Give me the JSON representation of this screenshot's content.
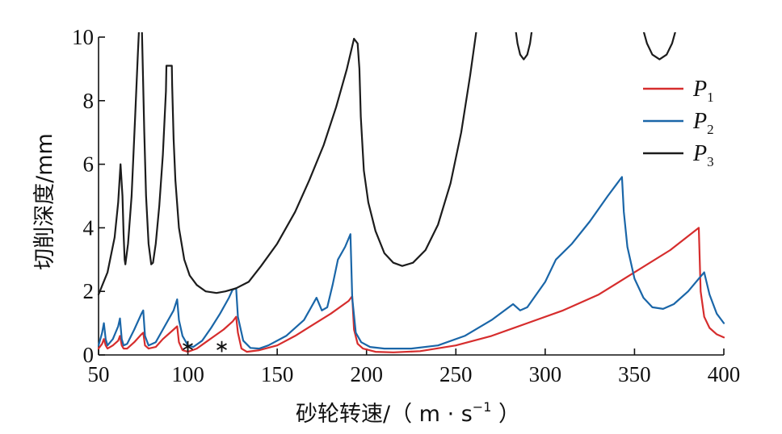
{
  "chart_data": {
    "type": "line",
    "title": "",
    "xlabel": "砂轮转速/（ m · s⁻¹ ）",
    "xlabel_parts": {
      "main": "砂轮转速/（ m · s",
      "sup": "−1",
      "tail": " ）"
    },
    "ylabel": "切削深度/mm",
    "xlim": [
      50,
      400
    ],
    "ylim": [
      0,
      10
    ],
    "xticks": [
      50,
      100,
      150,
      200,
      250,
      300,
      350,
      400
    ],
    "yticks": [
      0,
      2,
      4,
      6,
      8,
      10
    ],
    "grid": false,
    "legend_position": "top-right",
    "series": [
      {
        "name": "P1",
        "name_main": "P",
        "name_sub": "1",
        "color": "#d62d2d",
        "points": [
          [
            50,
            0.2
          ],
          [
            52,
            0.35
          ],
          [
            53,
            0.5
          ],
          [
            54,
            0.3
          ],
          [
            55,
            0.2
          ],
          [
            58,
            0.3
          ],
          [
            61,
            0.45
          ],
          [
            62,
            0.6
          ],
          [
            63,
            0.3
          ],
          [
            64,
            0.2
          ],
          [
            66,
            0.2
          ],
          [
            70,
            0.4
          ],
          [
            74,
            0.65
          ],
          [
            75,
            0.7
          ],
          [
            76,
            0.3
          ],
          [
            78,
            0.2
          ],
          [
            82,
            0.25
          ],
          [
            86,
            0.5
          ],
          [
            92,
            0.8
          ],
          [
            94,
            0.9
          ],
          [
            95,
            0.4
          ],
          [
            97,
            0.15
          ],
          [
            100,
            0.1
          ],
          [
            105,
            0.2
          ],
          [
            110,
            0.4
          ],
          [
            115,
            0.6
          ],
          [
            120,
            0.8
          ],
          [
            125,
            1.05
          ],
          [
            127,
            1.2
          ],
          [
            128,
            0.7
          ],
          [
            130,
            0.2
          ],
          [
            133,
            0.1
          ],
          [
            140,
            0.15
          ],
          [
            150,
            0.3
          ],
          [
            160,
            0.6
          ],
          [
            170,
            0.95
          ],
          [
            180,
            1.3
          ],
          [
            190,
            1.7
          ],
          [
            192,
            1.85
          ],
          [
            193,
            0.8
          ],
          [
            195,
            0.35
          ],
          [
            198,
            0.2
          ],
          [
            205,
            0.1
          ],
          [
            215,
            0.08
          ],
          [
            230,
            0.12
          ],
          [
            250,
            0.3
          ],
          [
            270,
            0.6
          ],
          [
            290,
            1.0
          ],
          [
            310,
            1.4
          ],
          [
            330,
            1.9
          ],
          [
            350,
            2.6
          ],
          [
            370,
            3.3
          ],
          [
            386,
            4.0
          ],
          [
            387,
            2.0
          ],
          [
            389,
            1.2
          ],
          [
            392,
            0.85
          ],
          [
            396,
            0.65
          ],
          [
            400,
            0.55
          ]
        ]
      },
      {
        "name": "P2",
        "name_main": "P",
        "name_sub": "2",
        "color": "#1a66a8",
        "points": [
          [
            50,
            0.3
          ],
          [
            52,
            0.7
          ],
          [
            53,
            1.0
          ],
          [
            54,
            0.5
          ],
          [
            55,
            0.3
          ],
          [
            58,
            0.5
          ],
          [
            61,
            0.9
          ],
          [
            62,
            1.15
          ],
          [
            63,
            0.5
          ],
          [
            64,
            0.3
          ],
          [
            66,
            0.35
          ],
          [
            70,
            0.8
          ],
          [
            74,
            1.3
          ],
          [
            75,
            1.4
          ],
          [
            76,
            0.6
          ],
          [
            78,
            0.3
          ],
          [
            82,
            0.4
          ],
          [
            86,
            0.8
          ],
          [
            92,
            1.4
          ],
          [
            94,
            1.75
          ],
          [
            95,
            1.1
          ],
          [
            97,
            0.6
          ],
          [
            100,
            0.3
          ],
          [
            103,
            0.25
          ],
          [
            108,
            0.45
          ],
          [
            113,
            0.85
          ],
          [
            118,
            1.3
          ],
          [
            123,
            1.8
          ],
          [
            125,
            2.05
          ],
          [
            127,
            2.1
          ],
          [
            128,
            1.2
          ],
          [
            131,
            0.45
          ],
          [
            135,
            0.22
          ],
          [
            140,
            0.2
          ],
          [
            145,
            0.3
          ],
          [
            155,
            0.6
          ],
          [
            165,
            1.1
          ],
          [
            172,
            1.8
          ],
          [
            175,
            1.4
          ],
          [
            178,
            1.5
          ],
          [
            181,
            2.2
          ],
          [
            184,
            3.0
          ],
          [
            188,
            3.4
          ],
          [
            191,
            3.8
          ],
          [
            192,
            1.8
          ],
          [
            194,
            0.7
          ],
          [
            197,
            0.4
          ],
          [
            202,
            0.25
          ],
          [
            210,
            0.2
          ],
          [
            225,
            0.2
          ],
          [
            240,
            0.3
          ],
          [
            255,
            0.6
          ],
          [
            270,
            1.1
          ],
          [
            282,
            1.6
          ],
          [
            286,
            1.4
          ],
          [
            290,
            1.5
          ],
          [
            300,
            2.3
          ],
          [
            306,
            3.0
          ],
          [
            315,
            3.5
          ],
          [
            325,
            4.2
          ],
          [
            335,
            5.0
          ],
          [
            343,
            5.6
          ],
          [
            344,
            4.5
          ],
          [
            346,
            3.4
          ],
          [
            350,
            2.4
          ],
          [
            355,
            1.8
          ],
          [
            360,
            1.5
          ],
          [
            366,
            1.45
          ],
          [
            372,
            1.6
          ],
          [
            380,
            2.0
          ],
          [
            386,
            2.4
          ],
          [
            389,
            2.6
          ],
          [
            392,
            1.9
          ],
          [
            396,
            1.3
          ],
          [
            400,
            1.0
          ]
        ]
      },
      {
        "name": "P3",
        "name_main": "P",
        "name_sub": "3",
        "color": "#1c1c1c",
        "segments": [
          [
            [
              50,
              1.9
            ],
            [
              55,
              2.6
            ],
            [
              59,
              3.7
            ],
            [
              61,
              4.8
            ],
            [
              62.3,
              6.0
            ],
            [
              63.4,
              5.0
            ],
            [
              64,
              3.8
            ],
            [
              64.6,
              3.0
            ],
            [
              65,
              2.85
            ],
            [
              66.5,
              3.5
            ],
            [
              68.5,
              5.0
            ],
            [
              70.5,
              7.5
            ],
            [
              72,
              9.5
            ],
            [
              72.6,
              10.2
            ]
          ],
          [
            [
              74.3,
              10.2
            ],
            [
              74.8,
              9.0
            ],
            [
              75.6,
              7.0
            ],
            [
              76.6,
              5.0
            ],
            [
              78,
              3.5
            ],
            [
              79.5,
              2.85
            ],
            [
              80.5,
              2.9
            ],
            [
              82,
              3.5
            ],
            [
              84,
              4.7
            ],
            [
              86,
              6.3
            ],
            [
              87.7,
              8.3
            ],
            [
              88,
              9.1
            ],
            [
              91,
              9.1
            ],
            [
              91.2,
              8.5
            ],
            [
              92,
              6.8
            ],
            [
              93,
              5.5
            ],
            [
              95,
              4.0
            ],
            [
              98,
              3.0
            ],
            [
              101,
              2.5
            ],
            [
              105,
              2.2
            ],
            [
              110,
              2.0
            ],
            [
              116,
              1.95
            ],
            [
              121,
              2.0
            ],
            [
              127,
              2.1
            ],
            [
              134,
              2.3
            ],
            [
              141,
              2.8
            ],
            [
              150,
              3.5
            ],
            [
              160,
              4.5
            ],
            [
              168,
              5.5
            ],
            [
              176,
              6.6
            ],
            [
              183,
              7.8
            ],
            [
              189,
              9.0
            ],
            [
              193,
              9.95
            ],
            [
              195,
              9.8
            ],
            [
              196,
              9.0
            ],
            [
              196.8,
              7.5
            ],
            [
              198.5,
              5.8
            ],
            [
              201,
              4.8
            ],
            [
              205,
              3.9
            ],
            [
              210,
              3.2
            ],
            [
              215,
              2.9
            ],
            [
              220,
              2.8
            ],
            [
              226,
              2.9
            ],
            [
              233,
              3.3
            ],
            [
              240,
              4.1
            ],
            [
              247,
              5.4
            ],
            [
              253,
              7.0
            ],
            [
              258,
              8.8
            ],
            [
              261.5,
              10.2
            ]
          ]
        ],
        "dips": [
          [
            [
              283.5,
              10.2
            ],
            [
              284.5,
              9.8
            ],
            [
              286,
              9.45
            ],
            [
              288,
              9.3
            ],
            [
              290,
              9.45
            ],
            [
              291.5,
              9.8
            ],
            [
              292.5,
              10.2
            ]
          ],
          [
            [
              355,
              10.2
            ],
            [
              357,
              9.8
            ],
            [
              360,
              9.45
            ],
            [
              364,
              9.3
            ],
            [
              368,
              9.45
            ],
            [
              371,
              9.8
            ],
            [
              373,
              10.2
            ]
          ]
        ]
      }
    ],
    "annotations": [
      {
        "text": "∗",
        "x": 100,
        "y": 0.45
      },
      {
        "text": "∗",
        "x": 119,
        "y": 0.45
      }
    ]
  }
}
